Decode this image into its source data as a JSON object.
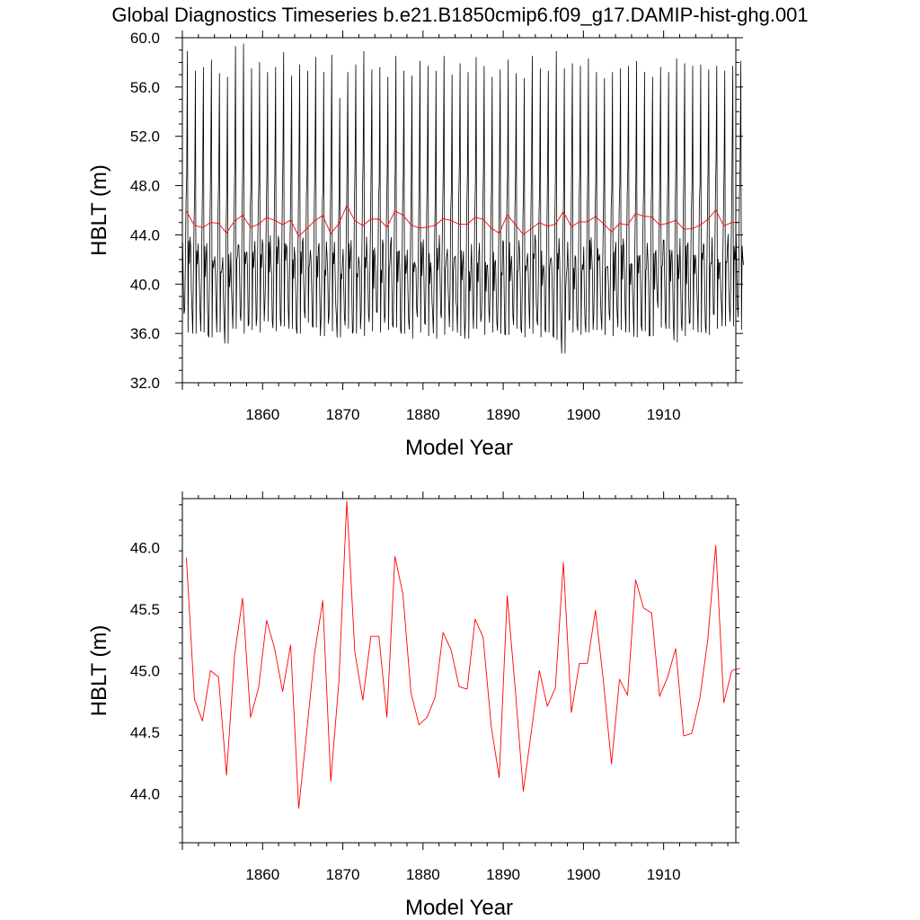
{
  "title": "Global Diagnostics Timeseries b.e21.B1850cmip6.f09_g17.DAMIP-hist-ghg.001",
  "colors": {
    "monthly_line": "#000000",
    "annual_line": "#ff0000",
    "frame": "#000000"
  },
  "chart_data": [
    {
      "type": "line",
      "xlabel": "Model Year",
      "ylabel": "HBLT (m)",
      "xlim": [
        1850,
        1919
      ],
      "ylim": [
        32,
        60
      ],
      "x_ticks": [
        1860,
        1870,
        1880,
        1890,
        1900,
        1910
      ],
      "y_ticks": [
        32,
        36,
        40,
        44,
        48,
        52,
        56,
        60
      ],
      "y_tick_labels": [
        "32.0",
        "36.0",
        "40.0",
        "44.0",
        "48.0",
        "52.0",
        "56.0",
        "60.0"
      ],
      "series": [
        {
          "kind": "monthly",
          "x_start": 1850.04,
          "x_step": 0.0833333,
          "year_peaks": [
            58.9,
            57.3,
            57.6,
            58.2,
            57.1,
            56.8,
            59.3,
            59.5,
            57.5,
            58.0,
            57.2,
            57.6,
            58.8,
            56.9,
            57.8,
            57.3,
            58.4,
            57.2,
            58.6,
            55.1,
            57.2,
            57.8,
            58.9,
            57.4,
            57.6,
            56.8,
            58.5,
            57.3,
            56.9,
            58.1,
            57.7,
            57.3,
            58.5,
            57.0,
            57.9,
            57.2,
            58.4,
            57.7,
            56.8,
            57.4,
            58.2,
            57.1,
            56.7,
            58.5,
            57.5,
            57.3,
            58.9,
            57.5,
            57.9,
            57.7,
            58.3,
            57.2,
            56.7,
            57.2,
            57.5,
            57.7,
            58.1,
            57.2,
            56.8,
            57.6,
            57.2,
            58.3,
            57.9,
            57.7,
            57.8,
            57.4,
            57.7,
            57.3,
            57.7,
            58.1
          ],
          "year_troughs": [
            36.1,
            36.0,
            36.1,
            35.7,
            36.1,
            35.2,
            36.4,
            36.0,
            36.3,
            36.1,
            37.0,
            36.2,
            36.6,
            36.4,
            36.0,
            36.9,
            36.5,
            35.8,
            36.2,
            35.7,
            36.4,
            36.0,
            35.8,
            36.2,
            36.1,
            36.3,
            36.5,
            36.0,
            35.6,
            36.1,
            35.8,
            35.6,
            35.9,
            36.2,
            35.8,
            35.6,
            36.4,
            35.9,
            36.1,
            36.0,
            35.9,
            36.4,
            35.7,
            36.0,
            35.7,
            36.1,
            35.5,
            34.4,
            36.1,
            35.9,
            36.1,
            36.3,
            35.9,
            35.8,
            36.3,
            36.1,
            35.7,
            36.2,
            35.8,
            36.5,
            36.4,
            35.3,
            35.8,
            36.3,
            36.1,
            35.9,
            36.4,
            36.6,
            36.6,
            36.3
          ]
        },
        {
          "kind": "annual",
          "x": [
            1850,
            1851,
            1852,
            1853,
            1854,
            1855,
            1856,
            1857,
            1858,
            1859,
            1860,
            1861,
            1862,
            1863,
            1864,
            1865,
            1866,
            1867,
            1868,
            1869,
            1870,
            1871,
            1872,
            1873,
            1874,
            1875,
            1876,
            1877,
            1878,
            1879,
            1880,
            1881,
            1882,
            1883,
            1884,
            1885,
            1886,
            1887,
            1888,
            1889,
            1890,
            1891,
            1892,
            1893,
            1894,
            1895,
            1896,
            1897,
            1898,
            1899,
            1900,
            1901,
            1902,
            1903,
            1904,
            1905,
            1906,
            1907,
            1908,
            1909,
            1910,
            1911,
            1912,
            1913,
            1914,
            1915,
            1916,
            1917,
            1918,
            1919
          ],
          "values": [
            45.92,
            44.77,
            44.59,
            45.0,
            44.95,
            44.15,
            45.12,
            45.59,
            44.62,
            44.86,
            45.41,
            45.18,
            44.83,
            45.21,
            43.88,
            44.5,
            45.15,
            45.57,
            44.1,
            44.9,
            46.38,
            45.15,
            44.76,
            45.28,
            45.28,
            44.62,
            45.93,
            45.62,
            44.82,
            44.56,
            44.62,
            44.78,
            45.31,
            45.17,
            44.87,
            44.85,
            45.42,
            45.27,
            44.55,
            44.13,
            45.61,
            44.85,
            44.02,
            44.5,
            45.0,
            44.71,
            44.86,
            45.88,
            44.66,
            45.06,
            45.06,
            45.49,
            44.91,
            44.24,
            44.93,
            44.8,
            45.74,
            45.51,
            45.47,
            44.79,
            44.95,
            45.18,
            44.47,
            44.49,
            44.77,
            45.25,
            46.02,
            44.74,
            45.0,
            45.02
          ]
        }
      ]
    },
    {
      "type": "line",
      "xlabel": "Model Year",
      "ylabel": "HBLT (m)",
      "xlim": [
        1850,
        1919
      ],
      "ylim": [
        43.6,
        46.4
      ],
      "x_ticks": [
        1860,
        1870,
        1880,
        1890,
        1900,
        1910
      ],
      "y_ticks": [
        44.0,
        44.5,
        45.0,
        45.5,
        46.0
      ],
      "y_tick_labels": [
        "44.0",
        "44.5",
        "45.0",
        "45.5",
        "46.0"
      ],
      "series": [
        {
          "kind": "annual",
          "x": [
            1850,
            1851,
            1852,
            1853,
            1854,
            1855,
            1856,
            1857,
            1858,
            1859,
            1860,
            1861,
            1862,
            1863,
            1864,
            1865,
            1866,
            1867,
            1868,
            1869,
            1870,
            1871,
            1872,
            1873,
            1874,
            1875,
            1876,
            1877,
            1878,
            1879,
            1880,
            1881,
            1882,
            1883,
            1884,
            1885,
            1886,
            1887,
            1888,
            1889,
            1890,
            1891,
            1892,
            1893,
            1894,
            1895,
            1896,
            1897,
            1898,
            1899,
            1900,
            1901,
            1902,
            1903,
            1904,
            1905,
            1906,
            1907,
            1908,
            1909,
            1910,
            1911,
            1912,
            1913,
            1914,
            1915,
            1916,
            1917,
            1918,
            1919
          ],
          "values": [
            45.92,
            44.77,
            44.59,
            45.0,
            44.95,
            44.15,
            45.12,
            45.59,
            44.62,
            44.86,
            45.41,
            45.18,
            44.83,
            45.21,
            43.88,
            44.5,
            45.15,
            45.57,
            44.1,
            44.9,
            46.38,
            45.15,
            44.76,
            45.28,
            45.28,
            44.62,
            45.93,
            45.62,
            44.82,
            44.56,
            44.62,
            44.78,
            45.31,
            45.17,
            44.87,
            44.85,
            45.42,
            45.27,
            44.55,
            44.13,
            45.61,
            44.85,
            44.02,
            44.5,
            45.0,
            44.71,
            44.86,
            45.88,
            44.66,
            45.06,
            45.06,
            45.49,
            44.91,
            44.24,
            44.93,
            44.8,
            45.74,
            45.51,
            45.47,
            44.79,
            44.95,
            45.18,
            44.47,
            44.49,
            44.77,
            45.25,
            46.02,
            44.74,
            45.0,
            45.02
          ]
        }
      ]
    }
  ]
}
